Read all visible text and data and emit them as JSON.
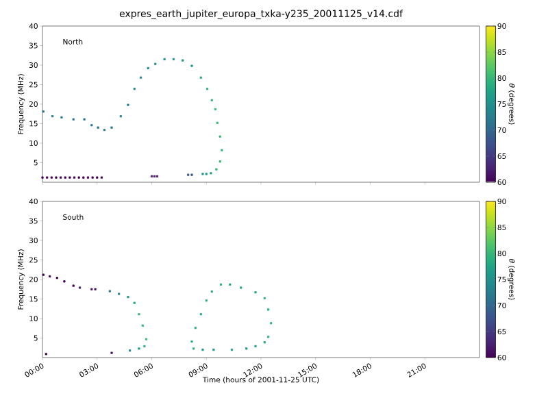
{
  "chart_data": [
    {
      "type": "scatter",
      "title": "expres_earth_jupiter_europa_txka-y235_20011125_v14.cdf",
      "ylabel": "Frequency (MHz)",
      "clabel": "*θ* (degrees)",
      "annotations": [
        "North"
      ],
      "marker": "square",
      "tick_labels": "y",
      "xlim": [
        0,
        24
      ],
      "xticks": [
        {
          "value": 0,
          "label": null
        },
        {
          "value": 3,
          "label": null
        },
        {
          "value": 6,
          "label": null
        },
        {
          "value": 9,
          "label": null
        },
        {
          "value": 12,
          "label": null
        },
        {
          "value": 15,
          "label": null
        },
        {
          "value": 18,
          "label": null
        },
        {
          "value": 21,
          "label": null
        }
      ],
      "ylim": [
        0,
        40
      ],
      "yticks": [
        5,
        10,
        15,
        20,
        25,
        30,
        35,
        40
      ],
      "clim": [
        60,
        90
      ],
      "cticks": [
        60,
        65,
        70,
        75,
        80,
        85,
        90
      ],
      "x": [
        0,
        0.25,
        0.5,
        0.75,
        1,
        1.25,
        1.5,
        1.75,
        2,
        2.25,
        2.5,
        2.75,
        3,
        3.25,
        6.0,
        6.15,
        6.3,
        8.0,
        8.2,
        8.8,
        9.0,
        9.25,
        9.55,
        9.75,
        9.85,
        9.75,
        9.6,
        9.5,
        9.3,
        9.05,
        8.7,
        8.2,
        7.7,
        7.2,
        6.7,
        6.2,
        5.8,
        5.4,
        5.05,
        4.7,
        4.3,
        3.8,
        3.4,
        3.05,
        2.7,
        2.3,
        1.7,
        1.05,
        0.55,
        0.05
      ],
      "values": [
        1.2,
        1.2,
        1.2,
        1.2,
        1.2,
        1.2,
        1.2,
        1.2,
        1.2,
        1.2,
        1.2,
        1.2,
        1.2,
        1.2,
        1.5,
        1.5,
        1.5,
        1.9,
        1.9,
        2.1,
        2.1,
        2.3,
        3.3,
        5.3,
        8.2,
        11.7,
        15.2,
        18.7,
        21,
        23.9,
        26.8,
        29.8,
        31.2,
        31.5,
        31.5,
        30.3,
        29.2,
        26.8,
        23.9,
        19.8,
        16.9,
        14,
        13.4,
        14,
        14.6,
        16.1,
        16.1,
        16.6,
        16.9,
        18.1
      ],
      "cvalues": [
        60,
        60,
        60,
        60,
        60,
        60,
        60,
        60,
        60,
        60,
        60,
        60,
        60,
        60,
        62,
        62,
        62,
        68,
        68,
        76,
        76,
        78,
        80,
        80,
        80,
        80,
        80,
        80,
        80,
        79,
        78,
        76,
        75,
        75,
        75,
        75,
        74,
        74,
        74,
        74,
        73,
        72,
        72,
        72,
        72,
        72,
        72,
        72,
        72,
        72
      ]
    },
    {
      "type": "scatter",
      "xlabel": "Time (hours of 2001-11-25 UTC)",
      "ylabel": "Frequency (MHz)",
      "clabel": "*θ* (degrees)",
      "annotations": [
        "South"
      ],
      "marker": "square",
      "xlim": [
        0,
        24
      ],
      "xticks": [
        {
          "value": 0,
          "label": "00:00"
        },
        {
          "value": 3,
          "label": "03:00"
        },
        {
          "value": 6,
          "label": "06:00"
        },
        {
          "value": 9,
          "label": "09:00"
        },
        {
          "value": 12,
          "label": "12:00"
        },
        {
          "value": 15,
          "label": "15:00"
        },
        {
          "value": 18,
          "label": "18:00"
        },
        {
          "value": 21,
          "label": "21:00"
        }
      ],
      "ylim": [
        0,
        40
      ],
      "yticks": [
        5,
        10,
        15,
        20,
        25,
        30,
        35,
        40
      ],
      "clim": [
        60,
        90
      ],
      "cticks": [
        60,
        65,
        70,
        75,
        80,
        85,
        90
      ],
      "x": [
        0.05,
        0.4,
        0.8,
        1.2,
        1.7,
        2.05,
        2.7,
        2.9,
        3.7,
        4.2,
        4.7,
        5.05,
        5.3,
        5.5,
        5.7,
        5.6,
        5.3,
        4.8,
        3.8,
        0.2,
        8.3,
        8.2,
        8.4,
        8.7,
        9.0,
        9.3,
        9.8,
        10.3,
        10.9,
        11.7,
        12.2,
        12.4,
        12.55,
        12.4,
        12.2,
        11.7,
        11.2,
        10.4,
        9.4,
        8.8
      ],
      "values": [
        21.2,
        20.8,
        20.4,
        19.5,
        18.4,
        17.9,
        17.5,
        17.5,
        17,
        16.3,
        15.5,
        14,
        11.1,
        8.2,
        4.7,
        2.9,
        2.3,
        1.8,
        1.2,
        0.9,
        2.3,
        4.1,
        7.6,
        11.1,
        14.6,
        16.9,
        18.7,
        18.7,
        17.9,
        16.7,
        15.2,
        12.3,
        8.8,
        5.3,
        3.9,
        2.9,
        2.3,
        2,
        2,
        2
      ],
      "cvalues": [
        60,
        60,
        60,
        60,
        60,
        62,
        62,
        62,
        72,
        74,
        76,
        78,
        80,
        80,
        80,
        79,
        77,
        74,
        62,
        60,
        79,
        79,
        79,
        79,
        79,
        79,
        78,
        78,
        78,
        78,
        79,
        79,
        79,
        79,
        78,
        77,
        76,
        76,
        76,
        76
      ]
    }
  ]
}
